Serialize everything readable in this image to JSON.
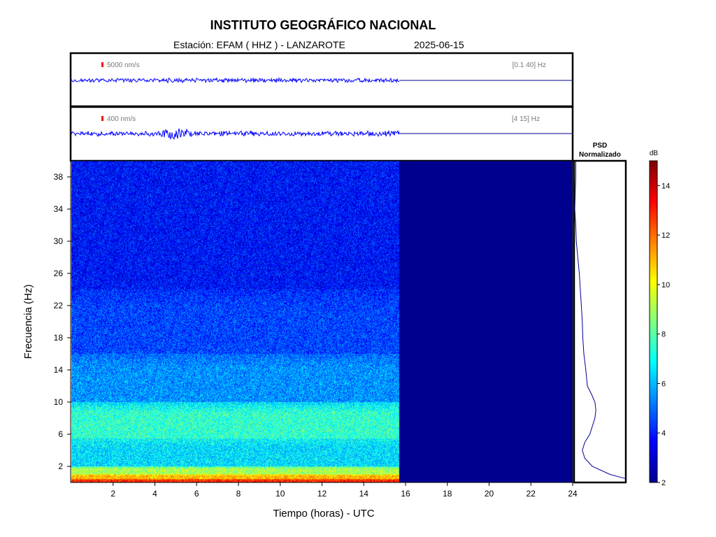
{
  "header": {
    "title": "INSTITUTO GEOGRÁFICO NACIONAL",
    "station": "Estación:  EFAM ( HHZ ) - LANZAROTE",
    "date": "2025-06-15"
  },
  "traces": [
    {
      "scale": "5000 nm/s",
      "band": "[0.1 40] Hz"
    },
    {
      "scale": "400 nm/s",
      "band": "[4 15] Hz"
    }
  ],
  "psd": {
    "title_line1": "PSD",
    "title_line2": "Normalizado"
  },
  "colorbar": {
    "unit": "dB",
    "range": [
      2,
      15
    ],
    "ticks": [
      2,
      4,
      6,
      8,
      10,
      12,
      14
    ]
  },
  "colors": {
    "trace": "#0000ff",
    "nodata": "#00008f",
    "psd_line": "#00008f"
  },
  "chart_data": {
    "type": "heatmap",
    "xlabel": "Tiempo (horas) - UTC",
    "ylabel": "Frecuencia  (Hz)",
    "xlim": [
      0,
      24
    ],
    "ylim": [
      0,
      40
    ],
    "x_ticks": [
      2,
      4,
      6,
      8,
      10,
      12,
      14,
      16,
      18,
      20,
      22,
      24
    ],
    "y_ticks": [
      2,
      6,
      10,
      14,
      18,
      22,
      26,
      30,
      34,
      38
    ],
    "data_end_hour": 15.7,
    "spectrogram_bands_db": [
      {
        "f_range": [
          0,
          0.4
        ],
        "db": 13
      },
      {
        "f_range": [
          0.4,
          1.0
        ],
        "db": 11
      },
      {
        "f_range": [
          1.0,
          2.0
        ],
        "db": 9
      },
      {
        "f_range": [
          2.0,
          5.5
        ],
        "db": 6.5
      },
      {
        "f_range": [
          5.5,
          10.0
        ],
        "db": 7.5
      },
      {
        "f_range": [
          10.0,
          16.0
        ],
        "db": 5.5
      },
      {
        "f_range": [
          16.0,
          24.0
        ],
        "db": 4.5
      },
      {
        "f_range": [
          24.0,
          40.0
        ],
        "db": 3.8
      }
    ],
    "psd_normalized": {
      "freq": [
        0.5,
        1,
        2,
        3,
        4,
        5,
        6,
        7,
        8,
        9,
        10,
        11,
        12,
        14,
        16,
        18,
        20,
        22,
        24,
        26,
        28,
        30,
        32,
        34,
        36,
        38,
        40
      ],
      "value": [
        1.0,
        0.7,
        0.35,
        0.2,
        0.15,
        0.2,
        0.3,
        0.35,
        0.4,
        0.42,
        0.4,
        0.33,
        0.25,
        0.22,
        0.18,
        0.16,
        0.15,
        0.13,
        0.11,
        0.09,
        0.06,
        0.03,
        0.02,
        0.0,
        0.01,
        0.02,
        0.02
      ]
    }
  }
}
